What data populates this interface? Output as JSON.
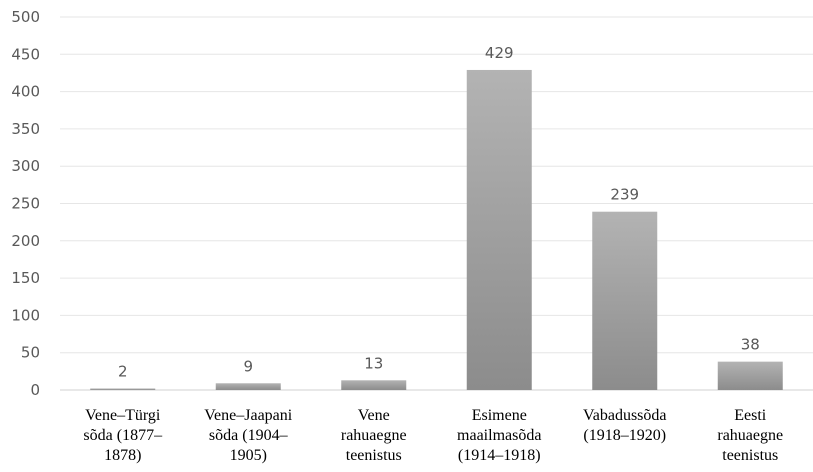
{
  "chart_data": {
    "type": "bar",
    "categories": [
      [
        "Vene–Türgi",
        "sõda (1877–",
        "1878)"
      ],
      [
        "Vene–Jaapani",
        "sõda (1904–",
        "1905)"
      ],
      [
        "Vene",
        "rahuaegne",
        "teenistus"
      ],
      [
        "Esimene",
        "maailmasõda",
        "(1914–1918)"
      ],
      [
        "Vabadussõda",
        "(1918–1920)"
      ],
      [
        "Eesti",
        "rahuaegne",
        "teenistus"
      ]
    ],
    "values": [
      2,
      9,
      13,
      429,
      239,
      38
    ],
    "data_labels": [
      "2",
      "9",
      "13",
      "429",
      "239",
      "38"
    ],
    "ylim": [
      0,
      500
    ],
    "yticks": [
      0,
      50,
      100,
      150,
      200,
      250,
      300,
      350,
      400,
      450,
      500
    ],
    "grid": true,
    "legend": "none",
    "bar_color_top": "#b3b3b3",
    "bar_color_bottom": "#8c8c8c"
  }
}
